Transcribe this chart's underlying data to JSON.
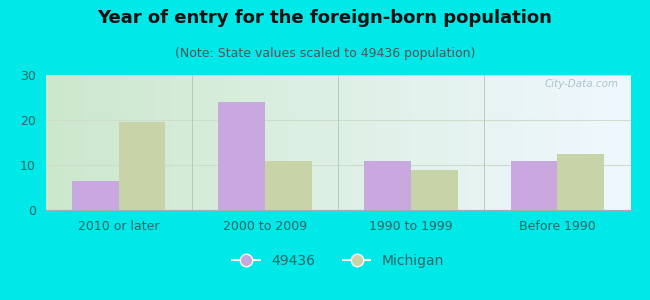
{
  "title": "Year of entry for the foreign-born population",
  "subtitle": "(Note: State values scaled to 49436 population)",
  "categories": [
    "2010 or later",
    "2000 to 2009",
    "1990 to 1999",
    "Before 1990"
  ],
  "values_49436": [
    6.5,
    24.0,
    11.0,
    11.0
  ],
  "values_michigan": [
    19.5,
    11.0,
    9.0,
    12.5
  ],
  "bar_color_49436": "#c9a8e0",
  "bar_color_michigan": "#c8d4a8",
  "background_outer": "#00e8e8",
  "background_inner_left": "#cce8cc",
  "background_inner_right": "#f0f8ff",
  "ylim": [
    0,
    30
  ],
  "yticks": [
    0,
    10,
    20,
    30
  ],
  "legend_label_1": "49436",
  "legend_label_2": "Michigan",
  "bar_width": 0.32,
  "title_fontsize": 13,
  "subtitle_fontsize": 9,
  "tick_fontsize": 9,
  "legend_fontsize": 10,
  "title_color": "#111111",
  "subtitle_color": "#555555",
  "tick_color": "#336666",
  "watermark": "City-Data.com"
}
